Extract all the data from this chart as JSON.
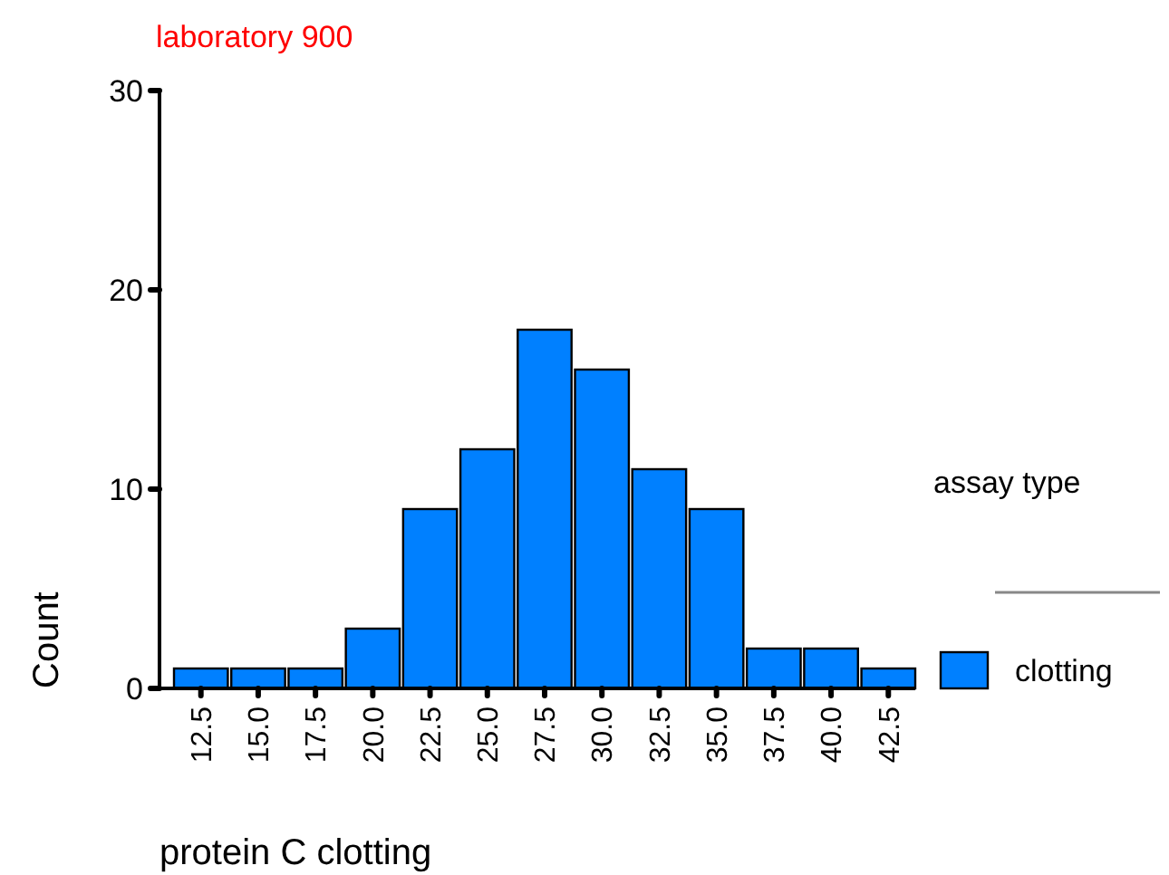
{
  "chart_data": {
    "type": "bar",
    "title": "laboratory 900",
    "xlabel": "protein C clotting",
    "ylabel": "Count",
    "legend_title": "assay type",
    "categories": [
      "12.5",
      "15.0",
      "17.5",
      "20.0",
      "22.5",
      "25.0",
      "27.5",
      "30.0",
      "32.5",
      "35.0",
      "37.5",
      "40.0",
      "42.5"
    ],
    "series": [
      {
        "name": "clotting",
        "color": "#0080ff",
        "values": [
          1,
          1,
          1,
          3,
          9,
          12,
          18,
          16,
          11,
          9,
          2,
          2,
          1
        ]
      }
    ],
    "ylim": [
      0,
      30
    ],
    "yticks": [
      0,
      10,
      20,
      30
    ],
    "grid": false,
    "legend": "right"
  }
}
